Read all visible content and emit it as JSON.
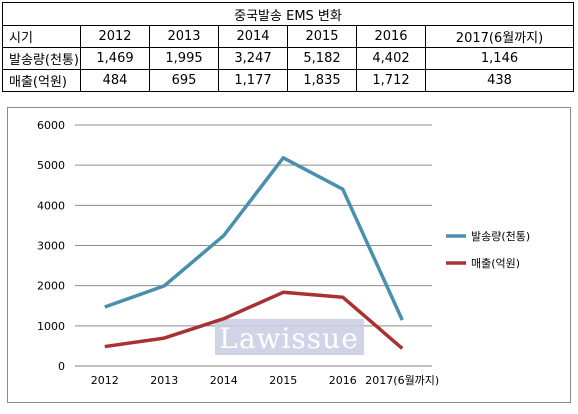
{
  "table": {
    "title": "중국발송  EMS  변화",
    "header": [
      "시기",
      "2012",
      "2013",
      "2014",
      "2015",
      "2016",
      "2017(6월까지)"
    ],
    "rows": [
      [
        "발송량(천통)",
        "1,469",
        "1,995",
        "3,247",
        "5,182",
        "4,402",
        "1,146"
      ],
      [
        "매출(억원)",
        "484",
        "695",
        "1,177",
        "1,835",
        "1,712",
        "438"
      ]
    ]
  },
  "watermark": "Lawissue",
  "chart_data": {
    "type": "line",
    "categories": [
      "2012",
      "2013",
      "2014",
      "2015",
      "2016",
      "2017(6월까지)"
    ],
    "series": [
      {
        "name": "발송량(천통)",
        "values": [
          1469,
          1995,
          3247,
          5182,
          4402,
          1146
        ],
        "color": "#4a8fae"
      },
      {
        "name": "매출(억원)",
        "values": [
          484,
          695,
          1177,
          1835,
          1712,
          438
        ],
        "color": "#a83232"
      }
    ],
    "ylim": [
      0,
      6000
    ],
    "yticks": [
      0,
      1000,
      2000,
      3000,
      4000,
      5000,
      6000
    ],
    "grid": true,
    "legend_position": "right"
  }
}
